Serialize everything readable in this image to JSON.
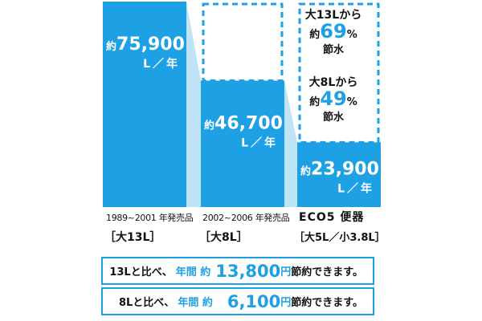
{
  "chart_data": {
    "type": "bar",
    "unit": "L／年",
    "prefix": "約",
    "ylim": [
      0,
      75900
    ],
    "bars": [
      {
        "value": 75900,
        "label": "75,900"
      },
      {
        "value": 46700,
        "label": "46,700"
      },
      {
        "value": 23900,
        "label": "23,900"
      }
    ]
  },
  "captions": [
    {
      "top": "1989~2001 年発売品",
      "bottom": "［大13L］"
    },
    {
      "top": "2002~2006 年発売品",
      "bottom": "［大8L］"
    },
    {
      "top": "ECO5 便器",
      "bottom": "［大5L／小3.8L］"
    }
  ],
  "savings": [
    {
      "from": "大13Lから",
      "prefix": "約",
      "pct": "69",
      "sign": "%",
      "word": "節水"
    },
    {
      "from": "大8Lから",
      "prefix": "約",
      "pct": "49",
      "sign": "%",
      "word": "節水"
    }
  ],
  "summary": [
    {
      "compare": "13Lと比べ、",
      "label": "年間 約",
      "amount": "13,800",
      "unit": "円",
      "tail": "節約できます。"
    },
    {
      "compare": "8Lと比べ、",
      "label": "年間 約",
      "amount": "6,100",
      "unit": "円",
      "tail": "節約できます。"
    }
  ],
  "colors": {
    "bar": "#1ea0e4",
    "connector": "#bfe3f7",
    "dashed": "#1ea0e4"
  }
}
